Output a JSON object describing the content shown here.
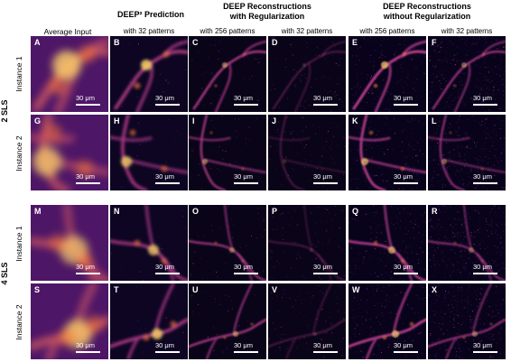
{
  "columns": {
    "average_input": "Average Input",
    "deep2_prediction": "DEEP² Prediction",
    "with_reg_title_line1": "DEEP Reconstructions",
    "with_reg_title_line2": "with Regularization",
    "without_reg_title_line1": "DEEP Reconstructions",
    "without_reg_title_line2": "without Regularization",
    "b_sub": "with 32 patterns",
    "c_sub": "with 256 patterns",
    "d_sub": "with 32 patterns",
    "e_sub": "with 256 patterns",
    "f_sub": "with 32 patterns"
  },
  "groups": {
    "sls2": "2 SLS",
    "sls4": "4 SLS"
  },
  "rows": {
    "r1": "Instance 1",
    "r2": "Instance 2",
    "r3": "Instance 1",
    "r4": "Instance 2"
  },
  "scalebar_text": "30 μm",
  "panels": [
    [
      "A",
      "B",
      "C",
      "D",
      "E",
      "F"
    ],
    [
      "G",
      "H",
      "I",
      "J",
      "K",
      "L"
    ],
    [
      "M",
      "N",
      "O",
      "P",
      "Q",
      "R"
    ],
    [
      "S",
      "T",
      "U",
      "V",
      "W",
      "X"
    ]
  ],
  "colors": {
    "colormap": "inferno"
  }
}
